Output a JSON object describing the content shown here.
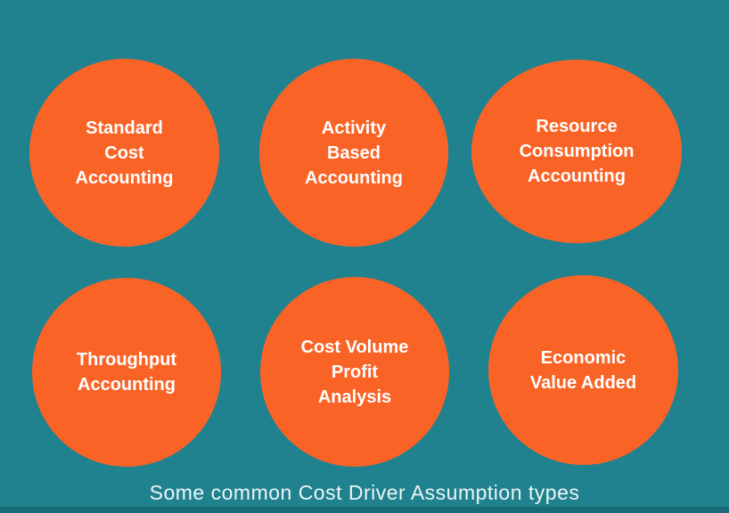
{
  "colors": {
    "background": "#20828F",
    "circle": "#FA6326",
    "label_text": "#FFFFFF",
    "caption_text": "#ECF5F6",
    "bottom_strip": "#1A6B77"
  },
  "circles": [
    {
      "id": "standard-cost-accounting",
      "label": "Standard\nCost\nAccounting"
    },
    {
      "id": "activity-based-accounting",
      "label": "Activity\nBased\nAccounting"
    },
    {
      "id": "resource-consumption-accounting",
      "label": "Resource\nConsumption\nAccounting"
    },
    {
      "id": "throughput-accounting",
      "label": "Throughput\nAccounting"
    },
    {
      "id": "cost-volume-profit-analysis",
      "label": "Cost Volume\nProfit\nAnalysis"
    },
    {
      "id": "economic-value-added",
      "label": "Economic\nValue Added"
    }
  ],
  "caption": {
    "text": "Some common Cost Driver Assumption types"
  }
}
